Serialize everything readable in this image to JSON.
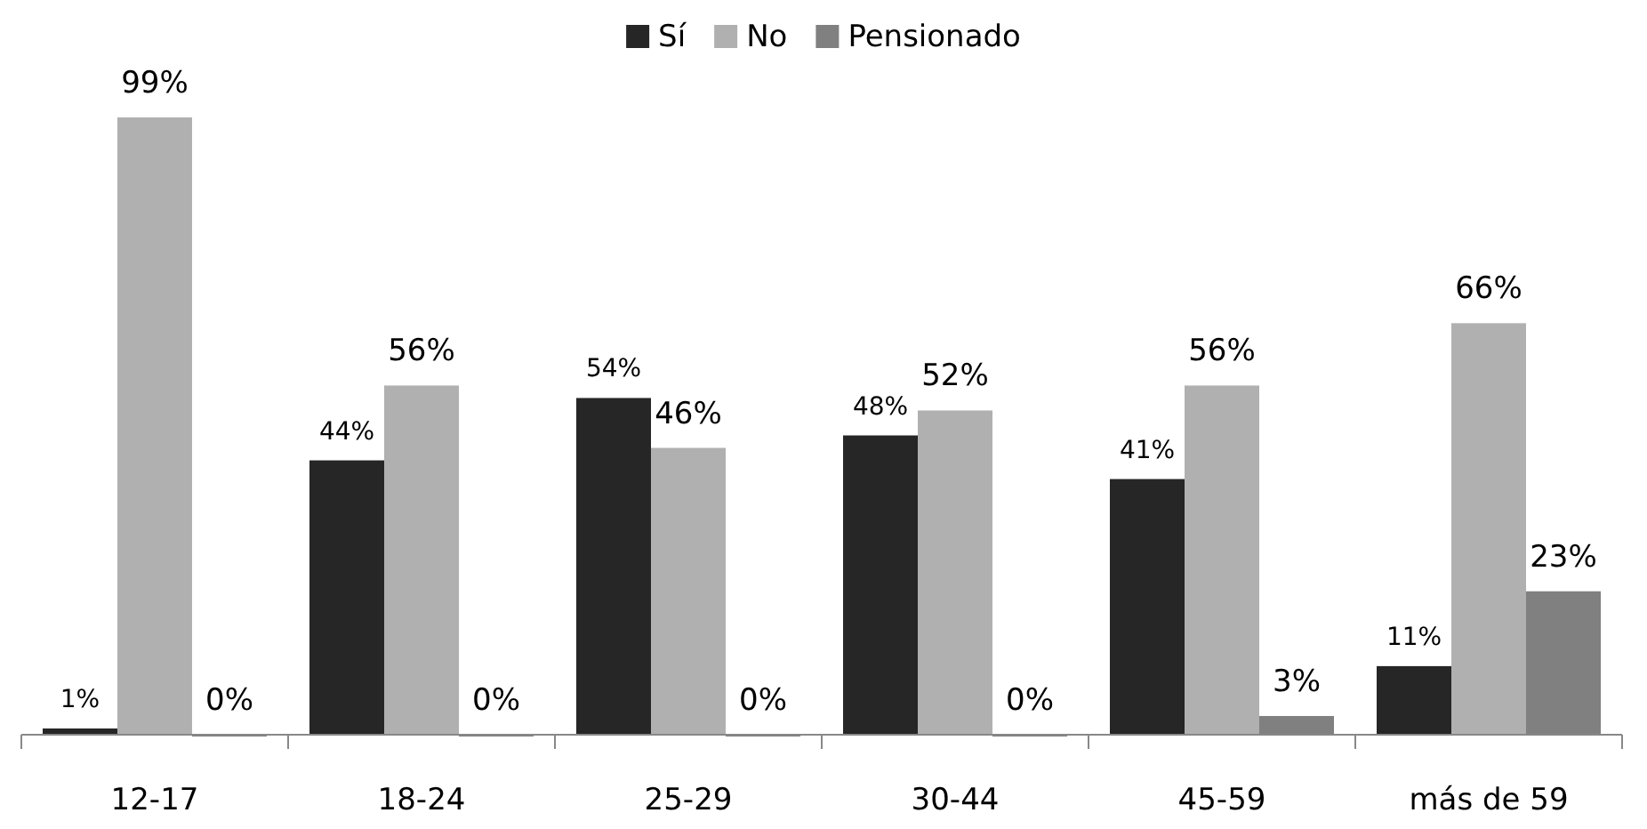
{
  "chart_data": {
    "type": "bar",
    "categories": [
      "12-17",
      "18-24",
      "25-29",
      "30-44",
      "45-59",
      "más de 59"
    ],
    "series": [
      {
        "name": "Sí",
        "color": "#262626",
        "values": [
          1,
          44,
          54,
          48,
          41,
          11
        ],
        "value_labels": [
          "1%",
          "44%",
          "54%",
          "48%",
          "41%",
          "11%"
        ]
      },
      {
        "name": "No",
        "color": "#b0b0b0",
        "values": [
          99,
          56,
          46,
          52,
          56,
          66
        ],
        "value_labels": [
          "99%",
          "56%",
          "46%",
          "52%",
          "56%",
          "66%"
        ]
      },
      {
        "name": "Pensionado",
        "color": "#808080",
        "values": [
          0,
          0,
          0,
          0,
          3,
          23
        ],
        "value_labels": [
          "0%",
          "0%",
          "0%",
          "0%",
          "3%",
          "23%"
        ]
      }
    ],
    "legend": "top"
  }
}
